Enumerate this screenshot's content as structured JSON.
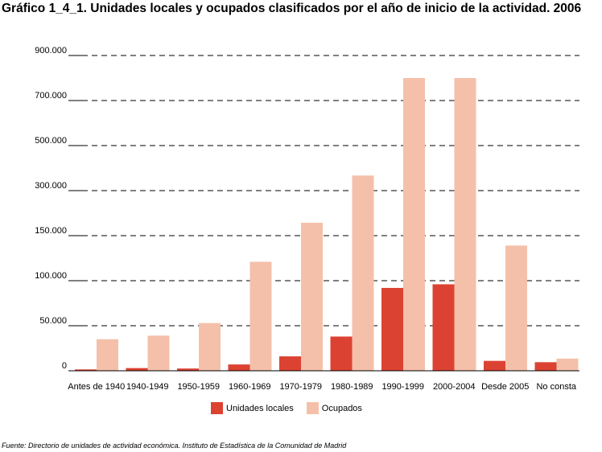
{
  "chart_data": {
    "type": "bar",
    "title": "Gráfico 1_4_1. Unidades locales y ocupados clasificados por el año de inicio de la actividad. 2006",
    "categories": [
      "Antes de 1940",
      "1940-1949",
      "1950-1959",
      "1960-1969",
      "1970-1979",
      "1980-1989",
      "1990-1999",
      "2000-2004",
      "Desde 2005",
      "No consta"
    ],
    "y_tick_labels": [
      "0",
      "50.000",
      "100.000",
      "150.000",
      "300.000",
      "500.000",
      "700.000",
      "900.000"
    ],
    "y_tick_values": [
      0,
      50000,
      100000,
      150000,
      300000,
      500000,
      700000,
      900000
    ],
    "series": [
      {
        "name": "Unidades locales",
        "color": "#dc4232",
        "values": [
          1500,
          3000,
          2500,
          7000,
          16000,
          38000,
          92000,
          96000,
          11000,
          9500
        ]
      },
      {
        "name": "Ocupados",
        "color": "#f4c0aa",
        "values": [
          35000,
          39000,
          53000,
          121000,
          193000,
          367000,
          800000,
          800000,
          139000,
          13500
        ]
      }
    ],
    "grid": true,
    "legend_position": "bottom"
  },
  "footnote": {
    "label": "Fuente:",
    "text": " Directorio de unidades de actividad económica. Instituto de Estadística de la Comunidad de Madrid"
  }
}
